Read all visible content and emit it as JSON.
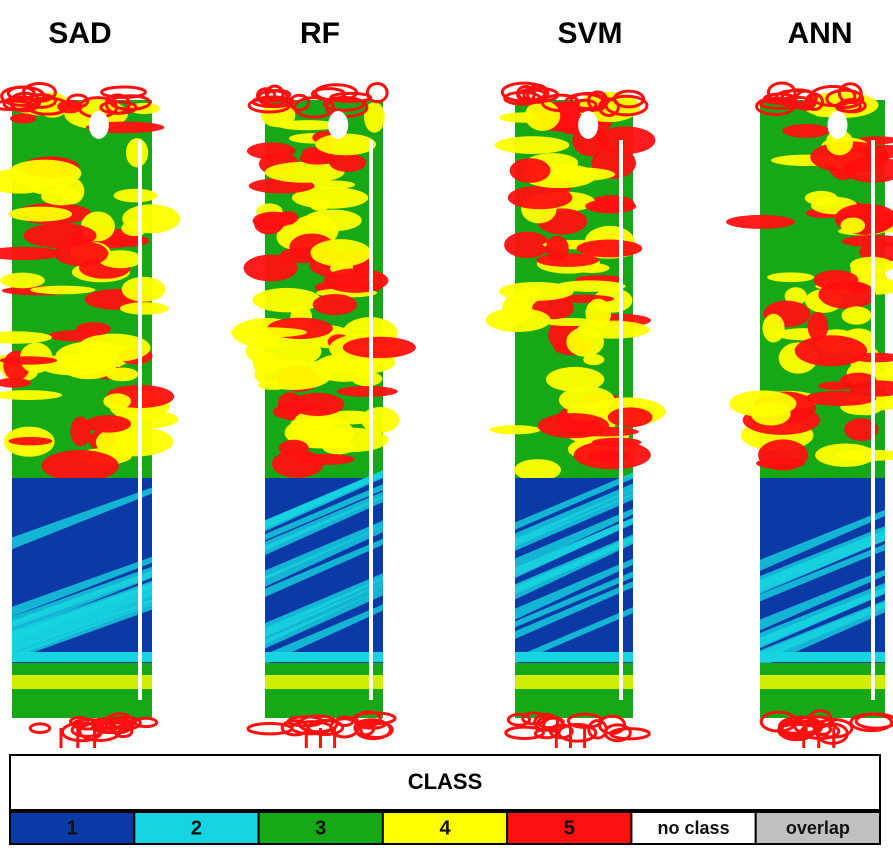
{
  "panels": [
    {
      "title": "SAD"
    },
    {
      "title": "RF"
    },
    {
      "title": "SVM"
    },
    {
      "title": "ANN"
    }
  ],
  "legend": {
    "title": "CLASS",
    "items": [
      {
        "label": "1",
        "color": "#0b3aa6"
      },
      {
        "label": "2",
        "color": "#16d4e0"
      },
      {
        "label": "3",
        "color": "#16a816"
      },
      {
        "label": "4",
        "color": "#ffff00"
      },
      {
        "label": "5",
        "color": "#ff1010"
      },
      {
        "label": "no class",
        "color": "#ffffff"
      },
      {
        "label": "overlap",
        "color": "#c0c0c0"
      }
    ]
  }
}
